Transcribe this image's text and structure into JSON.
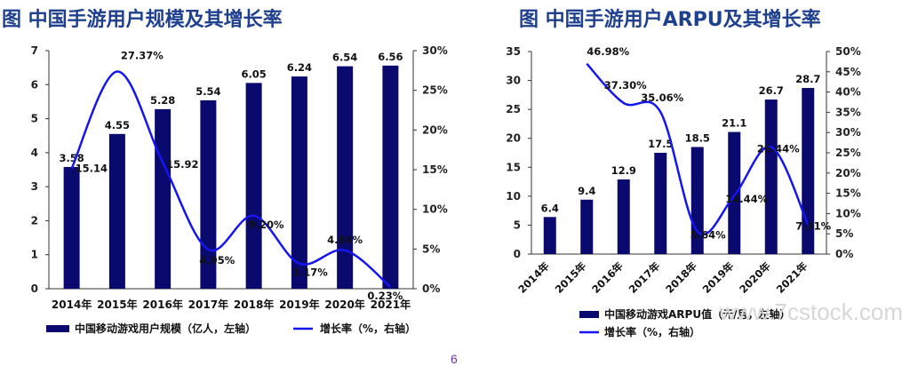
{
  "titles": [
    "图 中国手游用户规模及其增长率",
    "图 中国手游用户ARPU及其增长率"
  ],
  "page_number": "6",
  "watermark": "www.7cstock.com",
  "colors": {
    "bar": "#0a0a6e",
    "line": "#1515f0",
    "axis": "#333333",
    "title": "#1f3f8f"
  },
  "chart_data": [
    {
      "type": "bar",
      "title": "图 中国手游用户规模及其增长率",
      "categories": [
        "2014年",
        "2015年",
        "2016年",
        "2017年",
        "2018年",
        "2019年",
        "2020年",
        "2021年"
      ],
      "series": [
        {
          "name": "中国移动游戏用户规模（亿人，左轴）",
          "type": "bar",
          "axis": "left",
          "values": [
            3.58,
            4.55,
            5.28,
            5.54,
            6.05,
            6.24,
            6.54,
            6.56
          ],
          "labels": [
            "3.58",
            "4.55",
            "5.28",
            "5.54",
            "6.05",
            "6.24",
            "6.54",
            "6.56"
          ]
        },
        {
          "name": "增长率（%，右轴）",
          "type": "line",
          "axis": "right",
          "values": [
            15.14,
            27.37,
            15.92,
            4.95,
            9.2,
            3.17,
            4.84,
            0.23
          ],
          "labels": [
            "15.14",
            "27.37%",
            "15.92",
            "4.95%",
            "9.20%",
            "3.17%",
            "4.84%",
            "0.23%"
          ]
        }
      ],
      "y_left": {
        "min": 0,
        "max": 7,
        "ticks": [
          "0",
          "1",
          "2",
          "3",
          "4",
          "5",
          "6",
          "7"
        ]
      },
      "y_right": {
        "min": 0,
        "max": 30,
        "ticks": [
          "0%",
          "5%",
          "10%",
          "15%",
          "20%",
          "25%",
          "30%"
        ]
      },
      "legend": [
        "中国移动游戏用户规模（亿人，左轴）",
        "增长率（%，右轴）"
      ],
      "legend_position": "bottom"
    },
    {
      "type": "bar",
      "title": "图 中国手游用户ARPU及其增长率",
      "categories": [
        "2014年",
        "2015年",
        "2016年",
        "2017年",
        "2018年",
        "2019年",
        "2020年",
        "2021年"
      ],
      "series": [
        {
          "name": "中国移动游戏ARPU值（元/月，左轴）",
          "type": "bar",
          "axis": "left",
          "values": [
            6.4,
            9.4,
            12.9,
            17.5,
            18.5,
            21.1,
            26.7,
            28.7
          ],
          "labels": [
            "6.4",
            "9.4",
            "12.9",
            "17.5",
            "18.5",
            "21.1",
            "26.7",
            "28.7"
          ]
        },
        {
          "name": "增长率（%，右轴）",
          "type": "line",
          "axis": "right",
          "values": [
            null,
            46.98,
            37.3,
            35.06,
            5.64,
            14.44,
            26.44,
            7.31
          ],
          "labels": [
            "",
            "46.98%",
            "37.30%",
            "35.06%",
            "5.64%",
            "14.44%",
            "26.44%",
            "7.31%"
          ]
        }
      ],
      "y_left": {
        "min": 0,
        "max": 35,
        "ticks": [
          "0",
          "5",
          "10",
          "15",
          "20",
          "25",
          "30",
          "35"
        ]
      },
      "y_right": {
        "min": 0,
        "max": 50,
        "ticks": [
          "0%",
          "5%",
          "10%",
          "15%",
          "20%",
          "25%",
          "30%",
          "35%",
          "40%",
          "45%",
          "50%"
        ]
      },
      "legend": [
        "中国移动游戏ARPU值（元/月，左轴）",
        "增长率（%，右轴）"
      ],
      "legend_position": "bottom"
    }
  ]
}
